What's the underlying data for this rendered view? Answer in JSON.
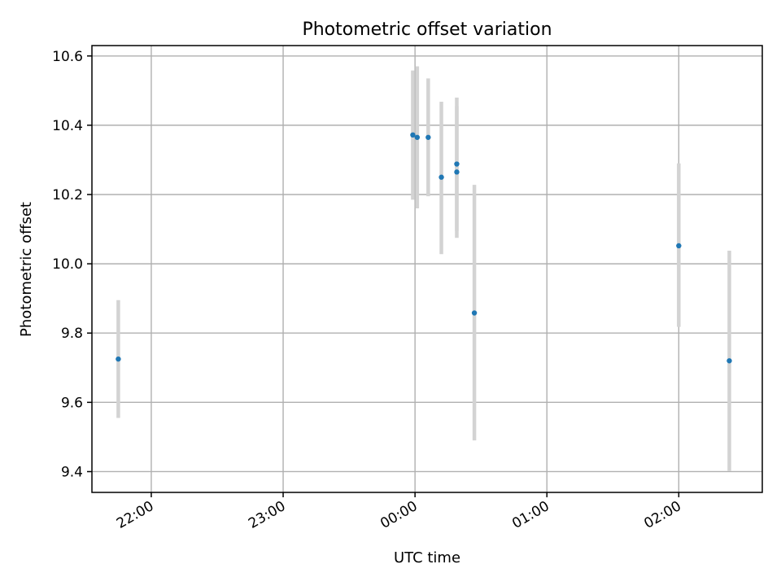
{
  "chart_data": {
    "type": "scatter",
    "title": "Photometric offset variation",
    "xlabel": "UTC time",
    "ylabel": "Photometric offset",
    "x_axis": {
      "type": "time",
      "ticks": [
        "22:00",
        "23:00",
        "00:00",
        "01:00",
        "02:00"
      ],
      "range": [
        "21:33",
        "02:38"
      ]
    },
    "y_axis": {
      "ticks": [
        "9.4",
        "9.6",
        "9.8",
        "10.0",
        "10.2",
        "10.4",
        "10.6"
      ],
      "range": [
        9.34,
        10.63
      ]
    },
    "grid": true,
    "colors": {
      "point": "#1f77b4",
      "errorbar": "#d3d3d3"
    },
    "points": [
      {
        "x": "21:45",
        "y": 9.725,
        "ymin": 9.555,
        "ymax": 9.895
      },
      {
        "x": "23:59",
        "y": 10.372,
        "ymin": 10.185,
        "ymax": 10.558
      },
      {
        "x": "00:01",
        "y": 10.365,
        "ymin": 10.16,
        "ymax": 10.57
      },
      {
        "x": "00:06",
        "y": 10.365,
        "ymin": 10.195,
        "ymax": 10.535
      },
      {
        "x": "00:12",
        "y": 10.25,
        "ymin": 10.028,
        "ymax": 10.468
      },
      {
        "x": "00:19",
        "y": 10.288,
        "ymin": 10.095,
        "ymax": 10.48
      },
      {
        "x": "00:19",
        "y": 10.265,
        "ymin": 10.075,
        "ymax": 10.455
      },
      {
        "x": "00:27",
        "y": 9.858,
        "ymin": 9.49,
        "ymax": 10.228
      },
      {
        "x": "02:00",
        "y": 10.052,
        "ymin": 9.818,
        "ymax": 10.29
      },
      {
        "x": "02:23",
        "y": 9.72,
        "ymin": 9.402,
        "ymax": 10.038
      }
    ]
  }
}
